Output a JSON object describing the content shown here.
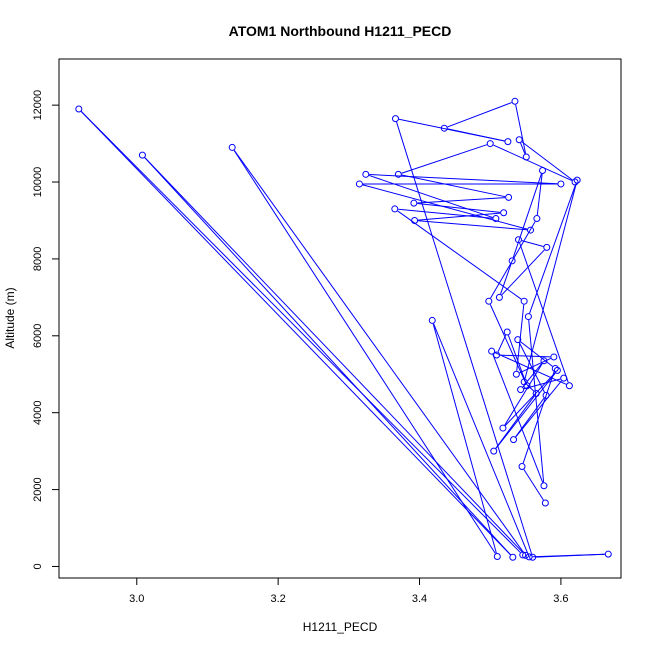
{
  "chart_data": {
    "type": "scatter",
    "title": "ATOM1 Northbound H1211_PECD",
    "xlabel": "H1211_PECD",
    "ylabel": "Altitude (m)",
    "xlim": [
      2.89,
      3.685
    ],
    "ylim": [
      -300,
      13200
    ],
    "x_ticks": [
      3.0,
      3.2,
      3.4,
      3.6
    ],
    "x_tick_labels": [
      "3.0",
      "3.2",
      "3.4",
      "3.6"
    ],
    "y_ticks": [
      0,
      2000,
      4000,
      6000,
      8000,
      10000,
      12000
    ],
    "y_tick_labels": [
      "0",
      "2000",
      "4000",
      "6000",
      "8000",
      "10000",
      "12000"
    ],
    "connected": true,
    "color": "#0000ff",
    "series": [
      {
        "x": [
          3.546,
          2.918,
          3.532,
          3.008,
          3.55,
          3.135,
          3.51,
          3.418,
          3.555,
          3.667,
          3.56,
          3.366,
          3.525,
          3.435,
          3.535,
          3.551,
          3.541,
          3.62,
          3.5,
          3.37,
          3.526,
          3.392,
          3.519,
          3.393,
          3.557,
          3.315,
          3.6,
          3.324,
          3.508,
          3.365,
          3.548,
          3.537,
          3.59,
          3.509,
          3.524,
          3.552,
          3.498,
          3.566,
          3.574,
          3.531,
          3.513,
          3.58,
          3.54,
          3.612,
          3.502,
          3.576,
          3.554,
          3.623,
          3.548,
          3.565,
          3.505,
          3.595,
          3.518,
          3.576,
          3.543,
          3.604,
          3.533,
          3.579,
          3.539,
          3.592,
          3.545,
          3.578
        ],
        "y": [
          300,
          11900,
          240,
          10700,
          290,
          10900,
          260,
          6400,
          250,
          320,
          240,
          11650,
          11050,
          11400,
          12100,
          10650,
          11100,
          10000,
          11000,
          10200,
          9600,
          9450,
          9200,
          9000,
          8750,
          9950,
          9950,
          10200,
          9050,
          9300,
          6900,
          5000,
          5450,
          5500,
          6100,
          4700,
          6900,
          9050,
          10300,
          7950,
          7000,
          8300,
          8500,
          4700,
          5600,
          2100,
          6500,
          10050,
          4800,
          4500,
          3000,
          5100,
          3600,
          5350,
          4600,
          4900,
          3300,
          4450,
          5900,
          5150,
          2600,
          1650
        ]
      }
    ]
  }
}
